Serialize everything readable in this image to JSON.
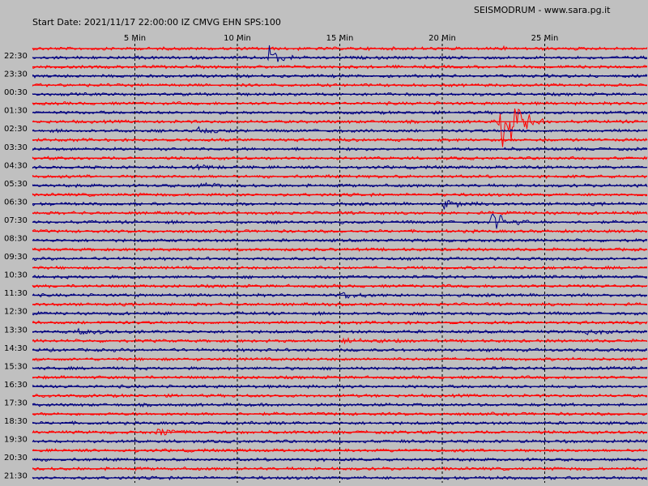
{
  "header": {
    "title": "SEISMODRUM - www.sara.pg.it",
    "start_info": "Start Date: 2021/11/17 22:00:00 IZ CMVG EHN SPS:100"
  },
  "chart_data": {
    "type": "line",
    "title": "SEISMODRUM - www.sara.pg.it",
    "subtitle": "Start Date: 2021/11/17 22:00:00 IZ CMVG EHN SPS:100",
    "x_tick_labels": [
      "5 Min",
      "10 Min",
      "15 Min",
      "20 Min",
      "25 Min"
    ],
    "x_ticks_min": [
      5,
      10,
      15,
      20,
      25
    ],
    "x_range_min": [
      0,
      30
    ],
    "row_labels": [
      "22:30",
      "23:30",
      "00:30",
      "01:30",
      "02:30",
      "03:30",
      "04:30",
      "05:30",
      "06:30",
      "07:30",
      "08:30",
      "09:30",
      "10:30",
      "11:30",
      "12:30",
      "13:30",
      "14:30",
      "15:30",
      "16:30",
      "17:30",
      "18:30",
      "19:30",
      "20:30",
      "21:30"
    ],
    "trace_count": 48,
    "series_colors": [
      "#ff0000",
      "#000080"
    ],
    "grid": "dashed vertical lines every 5 min",
    "events": [
      {
        "trace": 1,
        "minute_start": 11.5,
        "minute_end": 12.8,
        "amplitude": 20,
        "color": "#ff0000"
      },
      {
        "trace": 0,
        "minute_start": 22.9,
        "minute_end": 23.3,
        "amplitude": 10,
        "color": "#ff0000"
      },
      {
        "trace": 8,
        "minute_start": 22.7,
        "minute_end": 25.0,
        "amplitude": 60,
        "color": "#000080"
      },
      {
        "trace": 19,
        "minute_start": 22.3,
        "minute_end": 24.3,
        "amplitude": 18,
        "color": "#000080"
      },
      {
        "trace": 9,
        "minute_start": 8.0,
        "minute_end": 10.0,
        "amplitude": 4,
        "color": "#ff0000"
      },
      {
        "trace": 13,
        "minute_start": 8.0,
        "minute_end": 10.0,
        "amplitude": 4,
        "color": "#000080"
      },
      {
        "trace": 15,
        "minute_start": 8.0,
        "minute_end": 10.0,
        "amplitude": 4,
        "color": "#000080"
      },
      {
        "trace": 17,
        "minute_start": 20.0,
        "minute_end": 22.0,
        "amplitude": 7,
        "color": "#000080"
      },
      {
        "trace": 27,
        "minute_start": 15.0,
        "minute_end": 18.0,
        "amplitude": 4,
        "color": "#000080"
      },
      {
        "trace": 31,
        "minute_start": 2.0,
        "minute_end": 5.0,
        "amplitude": 4,
        "color": "#ff0000"
      },
      {
        "trace": 31,
        "minute_start": 27.0,
        "minute_end": 29.0,
        "amplitude": 4,
        "color": "#ff0000"
      },
      {
        "trace": 32,
        "minute_start": 15.0,
        "minute_end": 18.5,
        "amplitude": 4,
        "color": "#000080"
      },
      {
        "trace": 42,
        "minute_start": 6.0,
        "minute_end": 8.0,
        "amplitude": 8,
        "color": "#ff0000"
      }
    ]
  }
}
